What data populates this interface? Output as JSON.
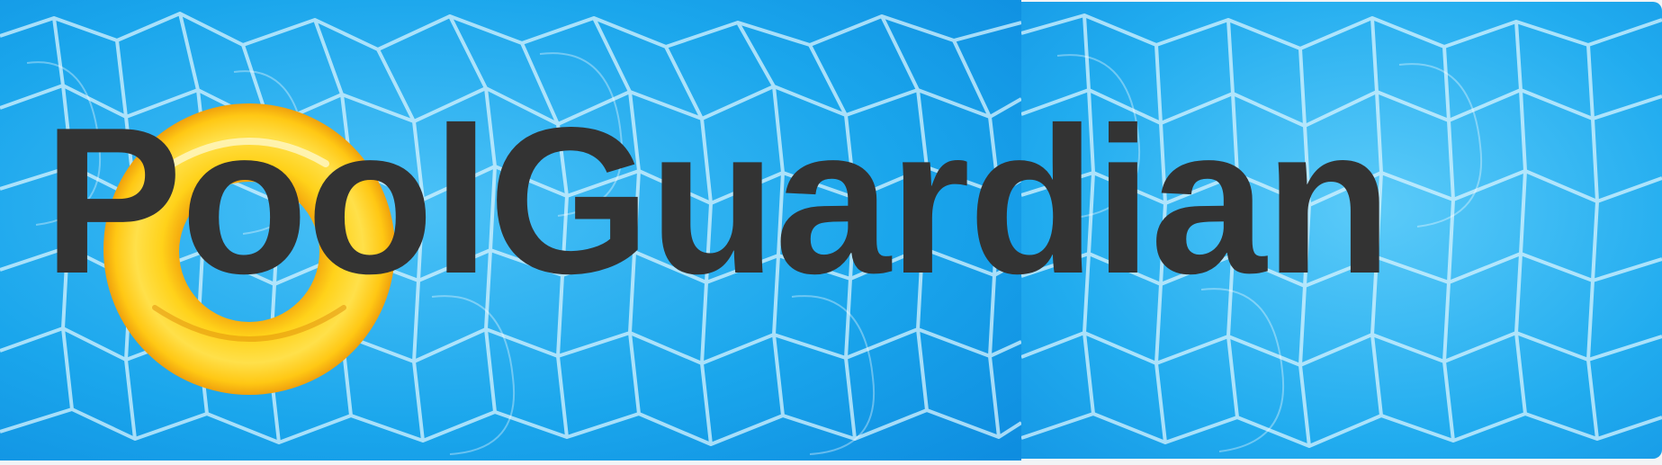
{
  "banner": {
    "title": "PoolGuardian"
  },
  "decorations": {
    "water_icon": "pool-water-caustics",
    "float_icon": "swim-ring-icon"
  },
  "colors": {
    "water_light": "#5cc8f8",
    "water_mid": "#1ba9ee",
    "water_deep": "#0f8fe0",
    "caustic_line": "#d8f4ff",
    "ring_yellow": "#ffd21a",
    "ring_orange": "#f3a00c",
    "title_text": "#333333"
  }
}
